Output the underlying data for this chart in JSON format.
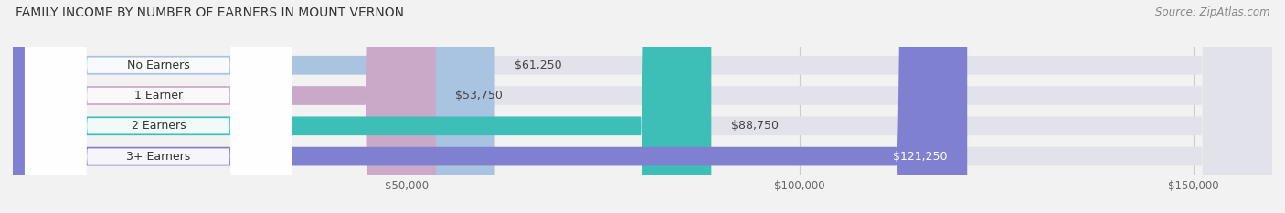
{
  "title": "FAMILY INCOME BY NUMBER OF EARNERS IN MOUNT VERNON",
  "source": "Source: ZipAtlas.com",
  "categories": [
    "No Earners",
    "1 Earner",
    "2 Earners",
    "3+ Earners"
  ],
  "values": [
    61250,
    53750,
    88750,
    121250
  ],
  "bar_colors": [
    "#a8c4e0",
    "#c9a8c8",
    "#3dbfb8",
    "#8080d0"
  ],
  "value_labels": [
    "$61,250",
    "$53,750",
    "$88,750",
    "$121,250"
  ],
  "bg_color": "#f2f2f2",
  "bar_bg_color": "#e2e2ea",
  "xlim": [
    0,
    160000
  ],
  "xticks": [
    50000,
    100000,
    150000
  ],
  "xtick_labels": [
    "$50,000",
    "$100,000",
    "$150,000"
  ],
  "title_fontsize": 10,
  "source_fontsize": 8.5,
  "bar_label_fontsize": 9,
  "value_label_fontsize": 9
}
